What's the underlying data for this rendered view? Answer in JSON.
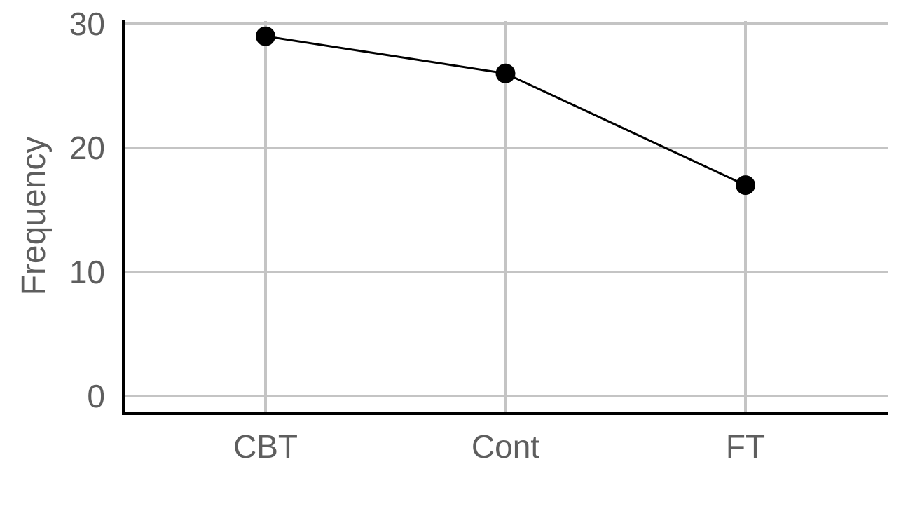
{
  "chart_data": {
    "type": "line",
    "categories": [
      "CBT",
      "Cont",
      "FT"
    ],
    "series": [
      {
        "values": [
          29,
          26,
          17
        ]
      }
    ],
    "title": "",
    "xlabel": "",
    "ylabel": "Frequency",
    "ylim": [
      -1.5,
      30
    ],
    "yticks": [
      0,
      10,
      20,
      30
    ],
    "grid": true,
    "colors": {
      "series": "#000000",
      "grid": "#c4c4c4",
      "axis": "#000000",
      "text": "#5e5e5e"
    }
  }
}
